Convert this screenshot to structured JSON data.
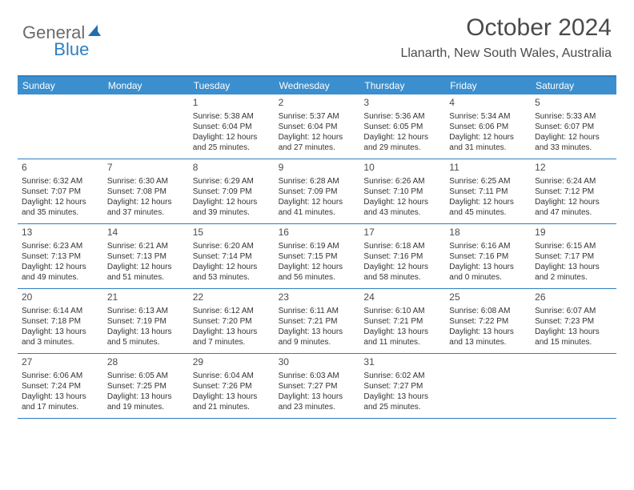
{
  "logo": {
    "general": "General",
    "blue": "Blue"
  },
  "title": "October 2024",
  "location": "Llanarth, New South Wales, Australia",
  "colors": {
    "header_bg": "#3b8fce",
    "border": "#2f7fc2",
    "text": "#333333",
    "title_text": "#4a4a4a",
    "logo_gray": "#6b6b6b",
    "logo_blue": "#2f7fc2",
    "background": "#ffffff"
  },
  "day_names": [
    "Sunday",
    "Monday",
    "Tuesday",
    "Wednesday",
    "Thursday",
    "Friday",
    "Saturday"
  ],
  "weeks": [
    [
      null,
      null,
      {
        "n": "1",
        "sr": "Sunrise: 5:38 AM",
        "ss": "Sunset: 6:04 PM",
        "d1": "Daylight: 12 hours",
        "d2": "and 25 minutes."
      },
      {
        "n": "2",
        "sr": "Sunrise: 5:37 AM",
        "ss": "Sunset: 6:04 PM",
        "d1": "Daylight: 12 hours",
        "d2": "and 27 minutes."
      },
      {
        "n": "3",
        "sr": "Sunrise: 5:36 AM",
        "ss": "Sunset: 6:05 PM",
        "d1": "Daylight: 12 hours",
        "d2": "and 29 minutes."
      },
      {
        "n": "4",
        "sr": "Sunrise: 5:34 AM",
        "ss": "Sunset: 6:06 PM",
        "d1": "Daylight: 12 hours",
        "d2": "and 31 minutes."
      },
      {
        "n": "5",
        "sr": "Sunrise: 5:33 AM",
        "ss": "Sunset: 6:07 PM",
        "d1": "Daylight: 12 hours",
        "d2": "and 33 minutes."
      }
    ],
    [
      {
        "n": "6",
        "sr": "Sunrise: 6:32 AM",
        "ss": "Sunset: 7:07 PM",
        "d1": "Daylight: 12 hours",
        "d2": "and 35 minutes."
      },
      {
        "n": "7",
        "sr": "Sunrise: 6:30 AM",
        "ss": "Sunset: 7:08 PM",
        "d1": "Daylight: 12 hours",
        "d2": "and 37 minutes."
      },
      {
        "n": "8",
        "sr": "Sunrise: 6:29 AM",
        "ss": "Sunset: 7:09 PM",
        "d1": "Daylight: 12 hours",
        "d2": "and 39 minutes."
      },
      {
        "n": "9",
        "sr": "Sunrise: 6:28 AM",
        "ss": "Sunset: 7:09 PM",
        "d1": "Daylight: 12 hours",
        "d2": "and 41 minutes."
      },
      {
        "n": "10",
        "sr": "Sunrise: 6:26 AM",
        "ss": "Sunset: 7:10 PM",
        "d1": "Daylight: 12 hours",
        "d2": "and 43 minutes."
      },
      {
        "n": "11",
        "sr": "Sunrise: 6:25 AM",
        "ss": "Sunset: 7:11 PM",
        "d1": "Daylight: 12 hours",
        "d2": "and 45 minutes."
      },
      {
        "n": "12",
        "sr": "Sunrise: 6:24 AM",
        "ss": "Sunset: 7:12 PM",
        "d1": "Daylight: 12 hours",
        "d2": "and 47 minutes."
      }
    ],
    [
      {
        "n": "13",
        "sr": "Sunrise: 6:23 AM",
        "ss": "Sunset: 7:13 PM",
        "d1": "Daylight: 12 hours",
        "d2": "and 49 minutes."
      },
      {
        "n": "14",
        "sr": "Sunrise: 6:21 AM",
        "ss": "Sunset: 7:13 PM",
        "d1": "Daylight: 12 hours",
        "d2": "and 51 minutes."
      },
      {
        "n": "15",
        "sr": "Sunrise: 6:20 AM",
        "ss": "Sunset: 7:14 PM",
        "d1": "Daylight: 12 hours",
        "d2": "and 53 minutes."
      },
      {
        "n": "16",
        "sr": "Sunrise: 6:19 AM",
        "ss": "Sunset: 7:15 PM",
        "d1": "Daylight: 12 hours",
        "d2": "and 56 minutes."
      },
      {
        "n": "17",
        "sr": "Sunrise: 6:18 AM",
        "ss": "Sunset: 7:16 PM",
        "d1": "Daylight: 12 hours",
        "d2": "and 58 minutes."
      },
      {
        "n": "18",
        "sr": "Sunrise: 6:16 AM",
        "ss": "Sunset: 7:16 PM",
        "d1": "Daylight: 13 hours",
        "d2": "and 0 minutes."
      },
      {
        "n": "19",
        "sr": "Sunrise: 6:15 AM",
        "ss": "Sunset: 7:17 PM",
        "d1": "Daylight: 13 hours",
        "d2": "and 2 minutes."
      }
    ],
    [
      {
        "n": "20",
        "sr": "Sunrise: 6:14 AM",
        "ss": "Sunset: 7:18 PM",
        "d1": "Daylight: 13 hours",
        "d2": "and 3 minutes."
      },
      {
        "n": "21",
        "sr": "Sunrise: 6:13 AM",
        "ss": "Sunset: 7:19 PM",
        "d1": "Daylight: 13 hours",
        "d2": "and 5 minutes."
      },
      {
        "n": "22",
        "sr": "Sunrise: 6:12 AM",
        "ss": "Sunset: 7:20 PM",
        "d1": "Daylight: 13 hours",
        "d2": "and 7 minutes."
      },
      {
        "n": "23",
        "sr": "Sunrise: 6:11 AM",
        "ss": "Sunset: 7:21 PM",
        "d1": "Daylight: 13 hours",
        "d2": "and 9 minutes."
      },
      {
        "n": "24",
        "sr": "Sunrise: 6:10 AM",
        "ss": "Sunset: 7:21 PM",
        "d1": "Daylight: 13 hours",
        "d2": "and 11 minutes."
      },
      {
        "n": "25",
        "sr": "Sunrise: 6:08 AM",
        "ss": "Sunset: 7:22 PM",
        "d1": "Daylight: 13 hours",
        "d2": "and 13 minutes."
      },
      {
        "n": "26",
        "sr": "Sunrise: 6:07 AM",
        "ss": "Sunset: 7:23 PM",
        "d1": "Daylight: 13 hours",
        "d2": "and 15 minutes."
      }
    ],
    [
      {
        "n": "27",
        "sr": "Sunrise: 6:06 AM",
        "ss": "Sunset: 7:24 PM",
        "d1": "Daylight: 13 hours",
        "d2": "and 17 minutes."
      },
      {
        "n": "28",
        "sr": "Sunrise: 6:05 AM",
        "ss": "Sunset: 7:25 PM",
        "d1": "Daylight: 13 hours",
        "d2": "and 19 minutes."
      },
      {
        "n": "29",
        "sr": "Sunrise: 6:04 AM",
        "ss": "Sunset: 7:26 PM",
        "d1": "Daylight: 13 hours",
        "d2": "and 21 minutes."
      },
      {
        "n": "30",
        "sr": "Sunrise: 6:03 AM",
        "ss": "Sunset: 7:27 PM",
        "d1": "Daylight: 13 hours",
        "d2": "and 23 minutes."
      },
      {
        "n": "31",
        "sr": "Sunrise: 6:02 AM",
        "ss": "Sunset: 7:27 PM",
        "d1": "Daylight: 13 hours",
        "d2": "and 25 minutes."
      },
      null,
      null
    ]
  ]
}
